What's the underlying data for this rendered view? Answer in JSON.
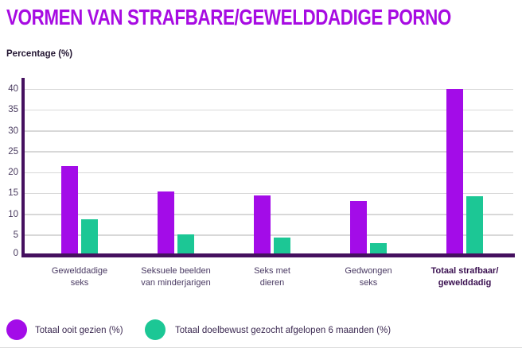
{
  "title": "VORMEN VAN STRAFBARE/GEWELDDADIGE PORNO",
  "y_axis_label": "Percentage (%)",
  "chart_data": {
    "type": "bar",
    "categories": [
      "Gewelddadige\nseks",
      "Seksuele beelden\nvan minderjarigen",
      "Seks met\ndieren",
      "Gedwongen\nseks",
      "Totaal strafbaar/\ngewelddadig"
    ],
    "emphasized_category_index": 4,
    "series": [
      {
        "name": "Totaal ooit gezien (%)",
        "color": "#A30CE8",
        "values": [
          21.5,
          15.5,
          14.5,
          13.2,
          40
        ]
      },
      {
        "name": "Totaal doelbewust gezocht afgelopen 6 maanden (%)",
        "color": "#1CC795",
        "values": [
          8.8,
          5.2,
          4.3,
          3.1,
          14.2
        ]
      }
    ],
    "ylabel": "Percentage (%)",
    "xlabel": "",
    "yticks": [
      0,
      5,
      10,
      15,
      20,
      25,
      30,
      35,
      40
    ],
    "ylim": [
      0,
      40
    ],
    "grid": true,
    "legend_position": "bottom"
  },
  "colors": {
    "title": "#A70BE2",
    "subtitle_text": "#241733",
    "axis": "#45105F",
    "gridline": "#D8D8D8",
    "tick_text": "#493B5F",
    "xlabel_text": "#4A3A63",
    "xlabel_bold_text": "#3A1050",
    "legend_text": "#3C2A52",
    "divider": "#DCDCDC",
    "background": "#FFFFFF"
  }
}
